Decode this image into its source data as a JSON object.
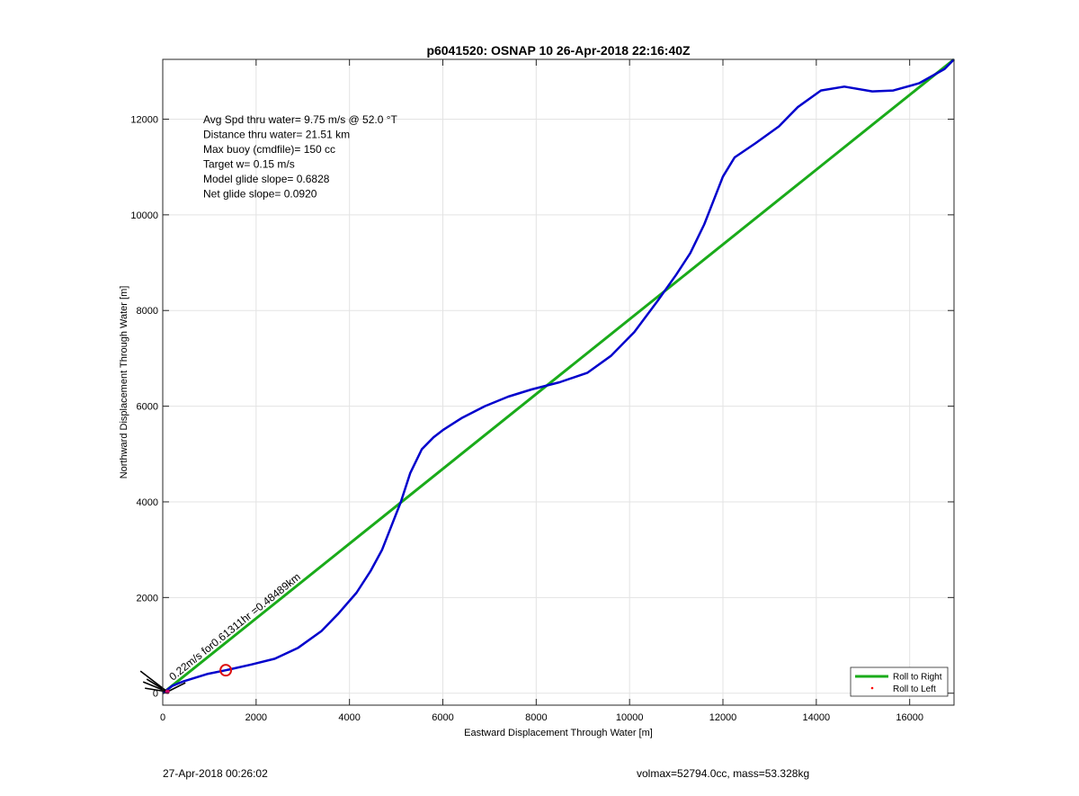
{
  "chart_data": {
    "type": "line",
    "title": "p6041520: OSNAP 10 26-Apr-2018 22:16:40Z",
    "xlabel": "Eastward Displacement Through Water [m]",
    "ylabel": "Northward Displacement Through Water [m]",
    "xlim": [
      0,
      16950
    ],
    "ylim": [
      -250,
      13250
    ],
    "xticks": [
      0,
      2000,
      4000,
      6000,
      8000,
      10000,
      12000,
      14000,
      16000
    ],
    "yticks": [
      0,
      2000,
      4000,
      6000,
      8000,
      10000,
      12000
    ],
    "grid": true,
    "legend_position": "bottom-right",
    "annotations": [
      "Avg Spd thru water=  9.75 m/s @  52.0 °T",
      "Distance thru water= 21.51 km",
      "Max buoy (cmdfile)= 150 cc",
      "Target w= 0.15 m/s",
      "Model glide slope= 0.6828",
      "Net glide slope= 0.0920"
    ],
    "current_label": "0.22m/s for0.61311hr =0.48489km",
    "marker_point": [
      1350,
      480
    ],
    "series": [
      {
        "name": "Roll to Right",
        "color": "#1aab1a",
        "x": [
          0,
          16950
        ],
        "y": [
          0,
          13250
        ]
      },
      {
        "name": "Roll to Left",
        "color": "#ff0000",
        "marker": "dot",
        "x": [],
        "y": []
      },
      {
        "name": "track",
        "color": "#0000cc",
        "x": [
          0,
          200,
          450,
          950,
          1350,
          1900,
          2400,
          2900,
          3400,
          3750,
          4150,
          4450,
          4700,
          4900,
          5100,
          5300,
          5550,
          5800,
          6000,
          6400,
          6900,
          7400,
          7900,
          8500,
          9100,
          9600,
          10100,
          10600,
          11000,
          11300,
          11600,
          11800,
          12000,
          12250,
          12700,
          13200,
          13600,
          14100,
          14600,
          15200,
          15650,
          16200,
          16750,
          16950
        ],
        "y": [
          0,
          150,
          250,
          400,
          480,
          600,
          720,
          950,
          1300,
          1650,
          2100,
          2550,
          3000,
          3500,
          4000,
          4600,
          5100,
          5350,
          5500,
          5750,
          6000,
          6200,
          6350,
          6500,
          6700,
          7050,
          7550,
          8200,
          8750,
          9200,
          9800,
          10300,
          10800,
          11200,
          11500,
          11850,
          12250,
          12600,
          12680,
          12580,
          12600,
          12750,
          13050,
          13250
        ]
      }
    ]
  },
  "legend": {
    "right_label": "Roll to Right",
    "left_label": "Roll to Left"
  },
  "footer": {
    "timestamp": "27-Apr-2018 00:26:02",
    "stats": "volmax=52794.0cc, mass=53.328kg"
  }
}
